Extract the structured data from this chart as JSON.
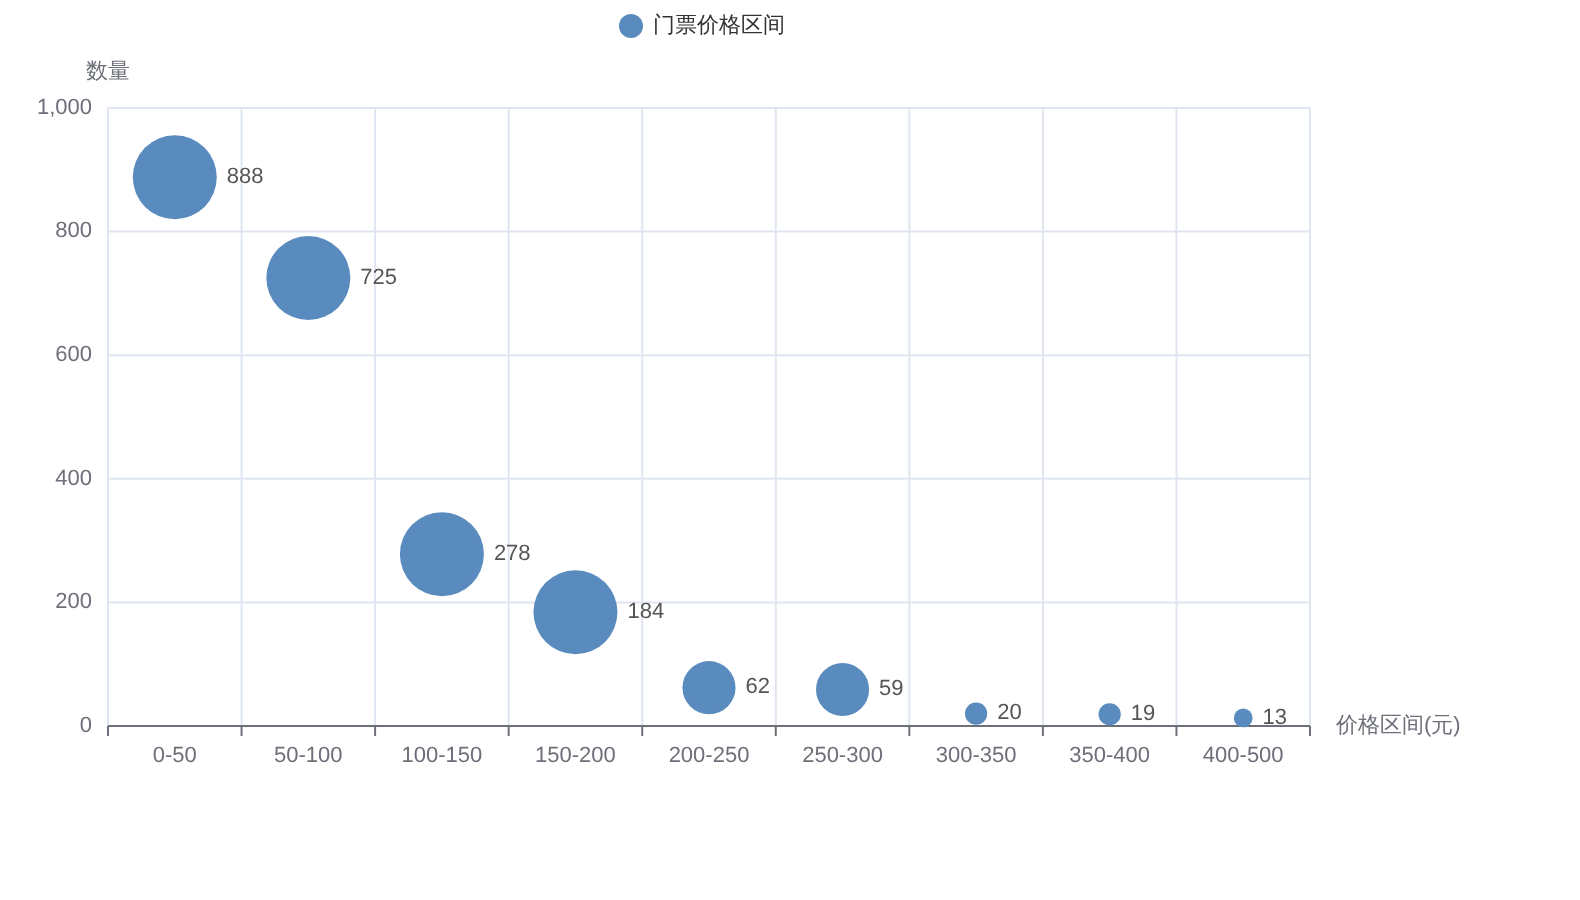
{
  "chart_data": {
    "type": "bubble",
    "categories": [
      "0-50",
      "50-100",
      "100-150",
      "150-200",
      "200-250",
      "250-300",
      "300-350",
      "350-400",
      "400-500"
    ],
    "series": [
      {
        "name": "门票价格区间",
        "color": "#5a8bbf",
        "values": [
          888,
          725,
          278,
          184,
          62,
          59,
          20,
          19,
          13
        ],
        "sizes": [
          1,
          1,
          1,
          1,
          0.4,
          0.4,
          0.07,
          0.07,
          0.05
        ]
      }
    ],
    "xlabel": "价格区间(元)",
    "ylabel": "数量",
    "ylim": [
      0,
      1000
    ],
    "yticks": [
      0,
      200,
      400,
      600,
      800,
      {
        "value": 1000,
        "label": "1,000"
      }
    ],
    "grid": true,
    "legend": "top",
    "data_labels": true
  }
}
